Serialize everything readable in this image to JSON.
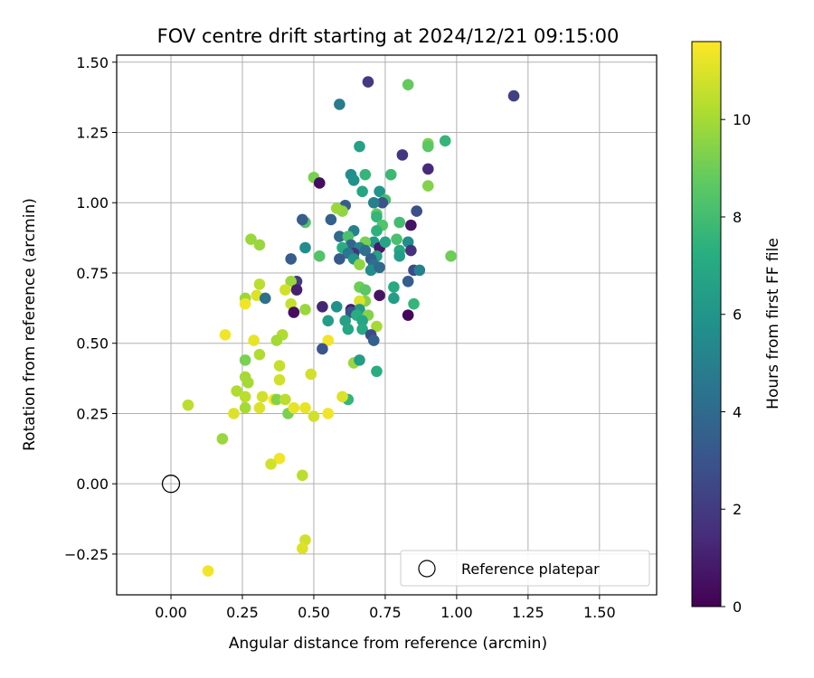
{
  "chart_data": {
    "type": "scatter",
    "title": "FOV centre drift starting at 2024/12/21 09:15:00",
    "xlabel": "Angular distance from reference (arcmin)",
    "ylabel": "Rotation from reference (arcmin)",
    "xlim": [
      -0.19,
      1.7
    ],
    "ylim": [
      -0.395,
      1.525
    ],
    "xticks": [
      "0.00",
      "0.25",
      "0.50",
      "0.75",
      "1.00",
      "1.25",
      "1.50"
    ],
    "yticks": [
      "−0.25",
      "0.00",
      "0.25",
      "0.50",
      "0.75",
      "1.00",
      "1.25",
      "1.50"
    ],
    "grid": true,
    "legend": {
      "placement": "lower-right",
      "entries": [
        "Reference platepar"
      ]
    },
    "reference_point": {
      "x": 0.0,
      "y": 0.0,
      "label": "Reference platepar"
    },
    "colorbar": {
      "label": "Hours from first FF file",
      "range": [
        0,
        11.6
      ],
      "ticks": [
        "0",
        "2",
        "4",
        "6",
        "8",
        "10"
      ],
      "colormap": "viridis"
    },
    "series": [
      {
        "points": [
          [
            0.69,
            1.43,
            2.0
          ],
          [
            0.83,
            1.42,
            8.8
          ],
          [
            1.2,
            1.38,
            2.2
          ],
          [
            0.59,
            1.35,
            4.8
          ],
          [
            0.9,
            1.21,
            9.2
          ],
          [
            0.96,
            1.22,
            7.6
          ],
          [
            0.9,
            1.2,
            8.6
          ],
          [
            0.66,
            1.2,
            6.6
          ],
          [
            0.81,
            1.17,
            1.8
          ],
          [
            0.9,
            1.12,
            1.4
          ],
          [
            0.68,
            1.1,
            7.6
          ],
          [
            0.77,
            1.1,
            7.8
          ],
          [
            0.63,
            1.1,
            5.6
          ],
          [
            0.64,
            1.08,
            5.8
          ],
          [
            0.5,
            1.09,
            9.2
          ],
          [
            0.52,
            1.07,
            0.4
          ],
          [
            0.9,
            1.06,
            9.4
          ],
          [
            0.67,
            1.04,
            6.8
          ],
          [
            0.73,
            1.04,
            6.0
          ],
          [
            0.75,
            1.01,
            8.0
          ],
          [
            0.74,
            1.0,
            3.0
          ],
          [
            0.61,
            0.99,
            3.4
          ],
          [
            0.71,
            1.0,
            5.0
          ],
          [
            0.6,
            0.97,
            9.6
          ],
          [
            0.58,
            0.98,
            9.8
          ],
          [
            0.72,
            0.96,
            8.8
          ],
          [
            0.72,
            0.95,
            7.6
          ],
          [
            0.84,
            0.92,
            0.6
          ],
          [
            0.86,
            0.97,
            2.8
          ],
          [
            0.56,
            0.94,
            3.6
          ],
          [
            0.47,
            0.93,
            8.4
          ],
          [
            0.46,
            0.94,
            3.4
          ],
          [
            0.74,
            0.92,
            8.4
          ],
          [
            0.8,
            0.93,
            8.0
          ],
          [
            0.72,
            0.9,
            7.4
          ],
          [
            0.64,
            0.9,
            5.0
          ],
          [
            0.59,
            0.88,
            4.0
          ],
          [
            0.62,
            0.88,
            8.2
          ],
          [
            0.63,
            0.85,
            3.8
          ],
          [
            0.71,
            0.86,
            6.2
          ],
          [
            0.68,
            0.86,
            9.2
          ],
          [
            0.79,
            0.87,
            8.2
          ],
          [
            0.83,
            0.86,
            5.6
          ],
          [
            0.66,
            0.84,
            5.2
          ],
          [
            0.73,
            0.84,
            0.8
          ],
          [
            0.75,
            0.86,
            6.8
          ],
          [
            0.28,
            0.87,
            9.8
          ],
          [
            0.31,
            0.85,
            9.8
          ],
          [
            0.47,
            0.84,
            5.6
          ],
          [
            0.6,
            0.84,
            7.2
          ],
          [
            0.64,
            0.82,
            1.8
          ],
          [
            0.62,
            0.82,
            4.6
          ],
          [
            0.68,
            0.83,
            4.2
          ],
          [
            0.72,
            0.81,
            6.6
          ],
          [
            0.8,
            0.83,
            7.0
          ],
          [
            0.84,
            0.83,
            1.6
          ],
          [
            0.8,
            0.81,
            6.4
          ],
          [
            0.52,
            0.81,
            8.4
          ],
          [
            0.42,
            0.8,
            3.4
          ],
          [
            0.59,
            0.8,
            3.2
          ],
          [
            0.7,
            0.8,
            3.6
          ],
          [
            0.64,
            0.8,
            6.0
          ],
          [
            0.71,
            0.78,
            4.2
          ],
          [
            0.66,
            0.78,
            9.6
          ],
          [
            0.7,
            0.76,
            5.6
          ],
          [
            0.73,
            0.77,
            4.0
          ],
          [
            0.85,
            0.76,
            2.6
          ],
          [
            0.87,
            0.76,
            5.0
          ],
          [
            0.98,
            0.81,
            9.0
          ],
          [
            0.44,
            0.72,
            2.0
          ],
          [
            0.42,
            0.72,
            9.8
          ],
          [
            0.83,
            0.72,
            3.4
          ],
          [
            0.44,
            0.69,
            1.0
          ],
          [
            0.31,
            0.71,
            10.4
          ],
          [
            0.4,
            0.69,
            10.8
          ],
          [
            0.66,
            0.7,
            9.0
          ],
          [
            0.68,
            0.69,
            8.6
          ],
          [
            0.78,
            0.7,
            7.0
          ],
          [
            0.73,
            0.67,
            0.6
          ],
          [
            0.68,
            0.65,
            9.4
          ],
          [
            0.66,
            0.65,
            11.0
          ],
          [
            0.78,
            0.66,
            6.4
          ],
          [
            0.85,
            0.64,
            7.6
          ],
          [
            0.26,
            0.66,
            9.8
          ],
          [
            0.3,
            0.67,
            11.0
          ],
          [
            0.33,
            0.66,
            4.2
          ],
          [
            0.42,
            0.64,
            10.6
          ],
          [
            0.26,
            0.64,
            11.4
          ],
          [
            0.58,
            0.63,
            5.8
          ],
          [
            0.53,
            0.63,
            1.2
          ],
          [
            0.63,
            0.62,
            1.0
          ],
          [
            0.66,
            0.62,
            6.2
          ],
          [
            0.63,
            0.61,
            3.0
          ],
          [
            0.65,
            0.6,
            7.2
          ],
          [
            0.69,
            0.6,
            9.4
          ],
          [
            0.67,
            0.58,
            6.8
          ],
          [
            0.43,
            0.61,
            0.4
          ],
          [
            0.47,
            0.62,
            9.8
          ],
          [
            0.55,
            0.58,
            6.4
          ],
          [
            0.61,
            0.58,
            6.6
          ],
          [
            0.62,
            0.55,
            6.8
          ],
          [
            0.67,
            0.55,
            7.0
          ],
          [
            0.72,
            0.56,
            10.0
          ],
          [
            0.83,
            0.6,
            0.2
          ],
          [
            0.19,
            0.53,
            11.4
          ],
          [
            0.39,
            0.53,
            10.2
          ],
          [
            0.29,
            0.51,
            11.2
          ],
          [
            0.37,
            0.51,
            10.0
          ],
          [
            0.55,
            0.51,
            11.4
          ],
          [
            0.7,
            0.53,
            2.6
          ],
          [
            0.71,
            0.51,
            3.6
          ],
          [
            0.53,
            0.48,
            3.0
          ],
          [
            0.31,
            0.46,
            10.2
          ],
          [
            0.26,
            0.44,
            9.2
          ],
          [
            0.38,
            0.42,
            10.6
          ],
          [
            0.64,
            0.43,
            9.8
          ],
          [
            0.66,
            0.44,
            6.4
          ],
          [
            0.49,
            0.39,
            10.8
          ],
          [
            0.72,
            0.4,
            7.2
          ],
          [
            0.26,
            0.38,
            10.0
          ],
          [
            0.27,
            0.36,
            10.0
          ],
          [
            0.38,
            0.37,
            10.8
          ],
          [
            0.23,
            0.33,
            10.2
          ],
          [
            0.26,
            0.31,
            10.4
          ],
          [
            0.32,
            0.31,
            10.8
          ],
          [
            0.36,
            0.3,
            11.6
          ],
          [
            0.37,
            0.3,
            9.4
          ],
          [
            0.4,
            0.3,
            10.4
          ],
          [
            0.62,
            0.3,
            7.6
          ],
          [
            0.6,
            0.31,
            11.0
          ],
          [
            0.06,
            0.28,
            10.4
          ],
          [
            0.26,
            0.27,
            10.0
          ],
          [
            0.31,
            0.27,
            11.0
          ],
          [
            0.41,
            0.25,
            9.2
          ],
          [
            0.43,
            0.27,
            11.2
          ],
          [
            0.47,
            0.27,
            11.2
          ],
          [
            0.22,
            0.25,
            11.0
          ],
          [
            0.5,
            0.24,
            10.8
          ],
          [
            0.55,
            0.25,
            11.4
          ],
          [
            0.18,
            0.16,
            9.8
          ],
          [
            0.38,
            0.09,
            11.4
          ],
          [
            0.35,
            0.07,
            10.8
          ],
          [
            0.46,
            0.03,
            10.4
          ],
          [
            0.47,
            -0.2,
            10.8
          ],
          [
            0.46,
            -0.23,
            11.0
          ],
          [
            0.13,
            -0.31,
            11.4
          ]
        ]
      }
    ]
  }
}
